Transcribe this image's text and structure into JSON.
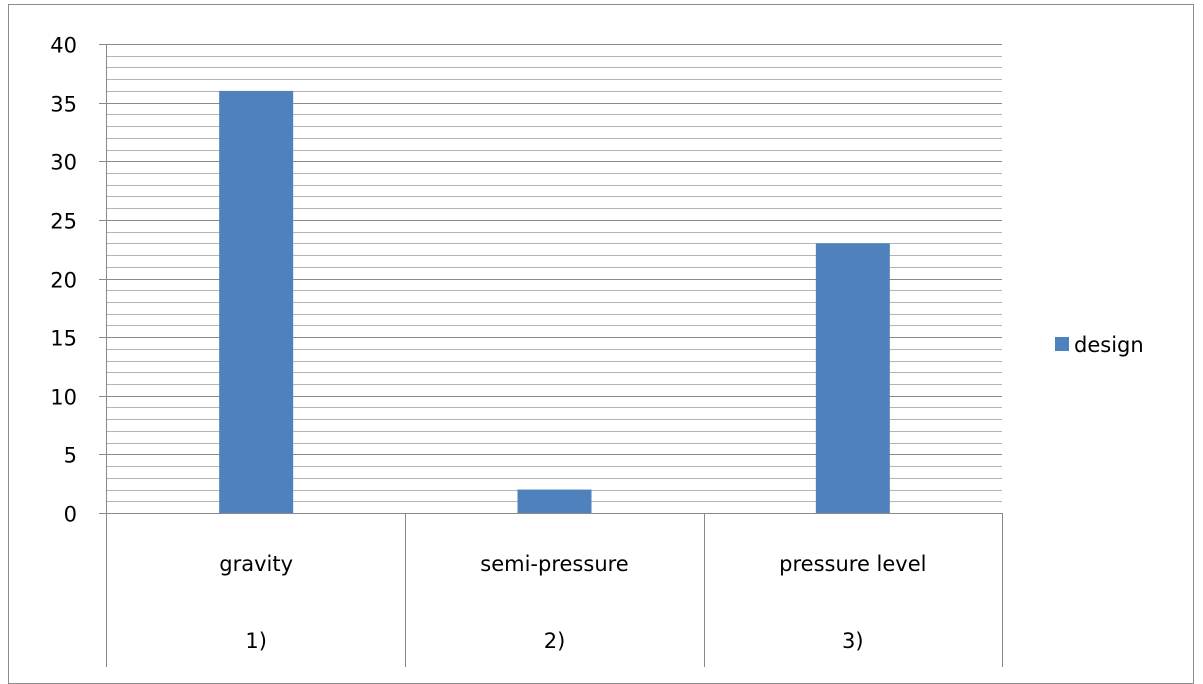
{
  "chart_data": {
    "type": "bar",
    "categories": [
      {
        "name": "gravity",
        "index": "1)"
      },
      {
        "name": "semi-pressure",
        "index": "2)"
      },
      {
        "name": "pressure level",
        "index": "3)"
      }
    ],
    "series": [
      {
        "name": "design",
        "values": [
          36,
          2,
          23
        ],
        "color": "#4f81bd"
      }
    ],
    "ylim": [
      0,
      40
    ],
    "y_major_ticks": [
      0,
      5,
      10,
      15,
      20,
      25,
      30,
      35,
      40
    ],
    "y_minor_step": 1,
    "grid": true,
    "legend_position": "right",
    "title": "",
    "xlabel": "",
    "ylabel": ""
  }
}
